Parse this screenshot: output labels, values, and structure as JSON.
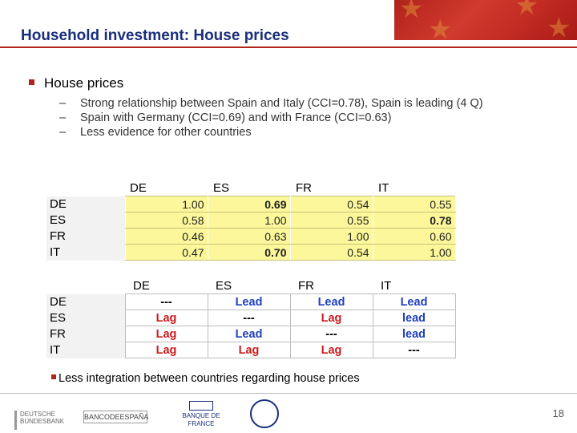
{
  "slide": {
    "title": "Household investment: House prices",
    "bullet": "House prices",
    "sub_bullets": [
      "Strong relationship between Spain and Italy (CCI=0.78), Spain is leading (4 Q)",
      "Spain with Germany (CCI=0.69) and with France (CCI=0.63)",
      "Less evidence for other countries"
    ],
    "bottom_note": "Less integration between countries regarding house prices",
    "page_number": "18"
  },
  "cci_table": {
    "columns": [
      "DE",
      "ES",
      "FR",
      "IT"
    ],
    "rows": [
      {
        "label": "DE",
        "values": [
          "1.00",
          "0.69",
          "0.54",
          "0.55"
        ]
      },
      {
        "label": "ES",
        "values": [
          "0.58",
          "1.00",
          "0.55",
          "0.78"
        ]
      },
      {
        "label": "FR",
        "values": [
          "0.46",
          "0.63",
          "1.00",
          "0.60"
        ]
      },
      {
        "label": "IT",
        "values": [
          "0.47",
          "0.70",
          "0.54",
          "1.00"
        ]
      }
    ]
  },
  "leadlag_table": {
    "columns": [
      "DE",
      "ES",
      "FR",
      "IT"
    ],
    "rows": [
      {
        "label": "DE",
        "values": [
          "---",
          "Lead",
          "Lead",
          "Lead"
        ]
      },
      {
        "label": "ES",
        "values": [
          "Lag",
          "---",
          "Lag",
          "lead"
        ]
      },
      {
        "label": "FR",
        "values": [
          "Lag",
          "Lead",
          "---",
          "lead"
        ]
      },
      {
        "label": "IT",
        "values": [
          "Lag",
          "Lag",
          "Lag",
          "---"
        ]
      }
    ]
  },
  "logos": {
    "bundesbank": "DEUTSCHE BUNDESBANK",
    "bde": "BANCODEESPAÑA",
    "bdf": "BANQUE DE FRANCE"
  },
  "colors": {
    "accent": "#b0221b",
    "title": "#1a2f7a",
    "cci_fill": "#fbf79a",
    "lead": "#1f3fbf",
    "lag": "#cc1c1c"
  }
}
